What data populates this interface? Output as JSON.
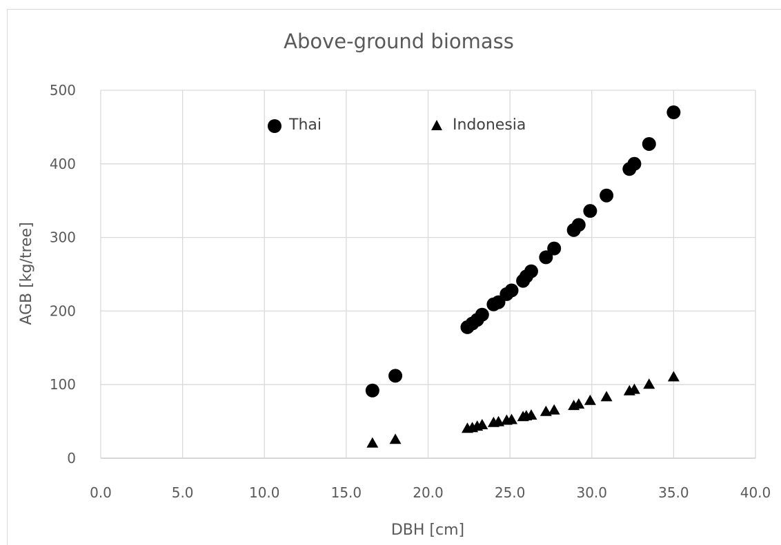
{
  "chart_data": {
    "type": "scatter",
    "title": "Above-ground biomass",
    "xlabel": "DBH [cm]",
    "ylabel": "AGB [kg/tree]",
    "xlim": [
      0,
      40
    ],
    "ylim": [
      0,
      500
    ],
    "x_ticks": [
      "0.0",
      "5.0",
      "10.0",
      "15.0",
      "20.0",
      "25.0",
      "30.0",
      "35.0",
      "40.0"
    ],
    "y_ticks": [
      "0",
      "100",
      "200",
      "300",
      "400",
      "500"
    ],
    "grid": true,
    "legend_position": "top",
    "series": [
      {
        "name": "Thai",
        "marker": "circle",
        "color": "#000000",
        "points": [
          [
            16.6,
            92
          ],
          [
            18.0,
            112
          ],
          [
            22.4,
            178
          ],
          [
            22.7,
            183
          ],
          [
            23.0,
            188
          ],
          [
            23.3,
            195
          ],
          [
            24.0,
            209
          ],
          [
            24.3,
            212
          ],
          [
            24.8,
            223
          ],
          [
            25.1,
            228
          ],
          [
            25.8,
            241
          ],
          [
            26.0,
            247
          ],
          [
            26.3,
            254
          ],
          [
            27.2,
            273
          ],
          [
            27.7,
            285
          ],
          [
            28.9,
            310
          ],
          [
            29.2,
            317
          ],
          [
            29.9,
            336
          ],
          [
            30.9,
            357
          ],
          [
            32.3,
            393
          ],
          [
            32.6,
            400
          ],
          [
            33.5,
            427
          ],
          [
            35.0,
            470
          ]
        ]
      },
      {
        "name": "Indonesia",
        "marker": "triangle",
        "color": "#000000",
        "points": [
          [
            16.6,
            20
          ],
          [
            18.0,
            25
          ],
          [
            22.4,
            40
          ],
          [
            22.7,
            41
          ],
          [
            23.0,
            43
          ],
          [
            23.3,
            45
          ],
          [
            24.0,
            48
          ],
          [
            24.3,
            49
          ],
          [
            24.8,
            51
          ],
          [
            25.1,
            52
          ],
          [
            25.8,
            56
          ],
          [
            26.0,
            57
          ],
          [
            26.3,
            58
          ],
          [
            27.2,
            63
          ],
          [
            27.7,
            65
          ],
          [
            28.9,
            71
          ],
          [
            29.2,
            73
          ],
          [
            29.9,
            78
          ],
          [
            30.9,
            83
          ],
          [
            32.3,
            91
          ],
          [
            32.6,
            93
          ],
          [
            33.5,
            100
          ],
          [
            35.0,
            110
          ]
        ]
      }
    ]
  },
  "colors": {
    "grid": "#d9d9d9",
    "axis": "#bfbfbf",
    "marker": "#000000",
    "text": "#595959"
  }
}
